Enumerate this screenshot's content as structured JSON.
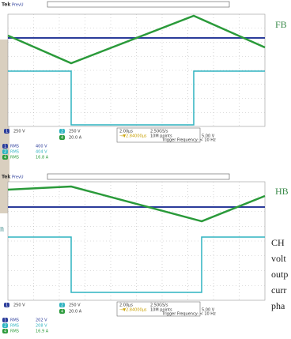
{
  "side_text": {
    "fb": "FB",
    "hb": "HB",
    "left": "n",
    "para": [
      "CH",
      "volt",
      "outp",
      "curr",
      "pha"
    ]
  },
  "panels": [
    {
      "brand": "Tek",
      "mode": "PrevU",
      "channels": [
        {
          "id": "1",
          "scale": "250 V"
        },
        {
          "id": "2",
          "scale": "250 V"
        },
        {
          "id": "4",
          "scale": "20.0 A"
        }
      ],
      "timebase": "2.00µs",
      "rate": "2.50GS/s",
      "delay": "→▼2.84000µs",
      "points": "10M points",
      "trigger_level": "5.00 V",
      "trigger_freq": "Trigger Frequency: < 10 Hz",
      "rms": [
        {
          "id": "1",
          "label": "RMS",
          "value": "400 V"
        },
        {
          "id": "2",
          "label": "RMS",
          "value": "404 V"
        },
        {
          "id": "4",
          "label": "RMS",
          "value": "16.8 A"
        }
      ]
    },
    {
      "brand": "Tek",
      "mode": "PrevU",
      "channels": [
        {
          "id": "1",
          "scale": "250 V"
        },
        {
          "id": "2",
          "scale": "250 V"
        },
        {
          "id": "4",
          "scale": "20.0 A"
        }
      ],
      "timebase": "2.00µs",
      "rate": "2.50GS/s",
      "delay": "→▼2.84000µs",
      "points": "10M points",
      "trigger_level": "5.00 V",
      "trigger_freq": "Trigger Frequency: < 10 Hz",
      "rms": [
        {
          "id": "1",
          "label": "RMS",
          "value": "202 V"
        },
        {
          "id": "2",
          "label": "RMS",
          "value": "208 V"
        },
        {
          "id": "4",
          "label": "RMS",
          "value": "16.9 A"
        }
      ]
    }
  ]
}
